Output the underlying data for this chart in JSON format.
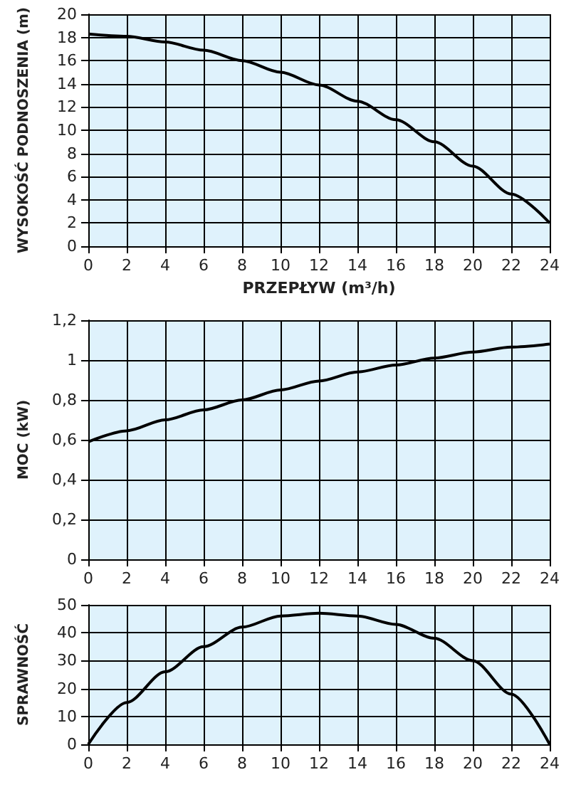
{
  "chart_data": [
    {
      "type": "line",
      "xlabel": "PRZEPŁYW (m³/h)",
      "ylabel": "WYSOKOŚĆ PODNOSZENIA (m)",
      "x": [
        0,
        2,
        4,
        6,
        8,
        10,
        12,
        14,
        16,
        18,
        20,
        22,
        24
      ],
      "series": [
        {
          "color": "#000000",
          "values": [
            18.3,
            18.1,
            17.6,
            16.9,
            16.0,
            15.0,
            13.9,
            12.5,
            10.9,
            9.0,
            6.9,
            4.5,
            2.0
          ]
        }
      ],
      "xlim": [
        0,
        24
      ],
      "xticks": [
        0,
        2,
        4,
        6,
        8,
        10,
        12,
        14,
        16,
        18,
        20,
        22,
        24
      ],
      "ylim": [
        0,
        20
      ],
      "yticks": [
        0,
        2,
        4,
        6,
        8,
        10,
        12,
        14,
        16,
        18,
        20
      ],
      "grid": true,
      "marker": "none"
    },
    {
      "type": "line",
      "ylabel": "MOC (kW)",
      "x": [
        0,
        2,
        4,
        6,
        8,
        10,
        12,
        14,
        16,
        18,
        20,
        22,
        24
      ],
      "series": [
        {
          "color": "#000000",
          "values": [
            0.59,
            0.645,
            0.7,
            0.75,
            0.8,
            0.85,
            0.895,
            0.94,
            0.975,
            1.01,
            1.04,
            1.065,
            1.08
          ]
        }
      ],
      "xlim": [
        0,
        24
      ],
      "xticks": [
        0,
        2,
        4,
        6,
        8,
        10,
        12,
        14,
        16,
        18,
        20,
        22,
        24
      ],
      "ylim": [
        0,
        1.2
      ],
      "yticks": [
        0,
        {
          "value": 0.2,
          "label": "0,2"
        },
        {
          "value": 0.4,
          "label": "0,4"
        },
        {
          "value": 0.6,
          "label": "0,6"
        },
        {
          "value": 0.8,
          "label": "0,8"
        },
        1,
        {
          "value": 1.2,
          "label": "1,2"
        }
      ],
      "grid": true,
      "marker": "none"
    },
    {
      "type": "line",
      "ylabel": "SPRAWNOŚĆ",
      "x": [
        0,
        2,
        4,
        6,
        8,
        10,
        12,
        14,
        16,
        18,
        20,
        22,
        24
      ],
      "series": [
        {
          "color": "#000000",
          "values": [
            0,
            15,
            26,
            35,
            42,
            46,
            47,
            46,
            43,
            38,
            30,
            18,
            0
          ]
        }
      ],
      "xlim": [
        0,
        24
      ],
      "xticks": [
        0,
        2,
        4,
        6,
        8,
        10,
        12,
        14,
        16,
        18,
        20,
        22,
        24
      ],
      "ylim": [
        0,
        50
      ],
      "yticks": [
        0,
        10,
        20,
        30,
        40,
        50
      ],
      "grid": true,
      "marker": "none"
    }
  ]
}
